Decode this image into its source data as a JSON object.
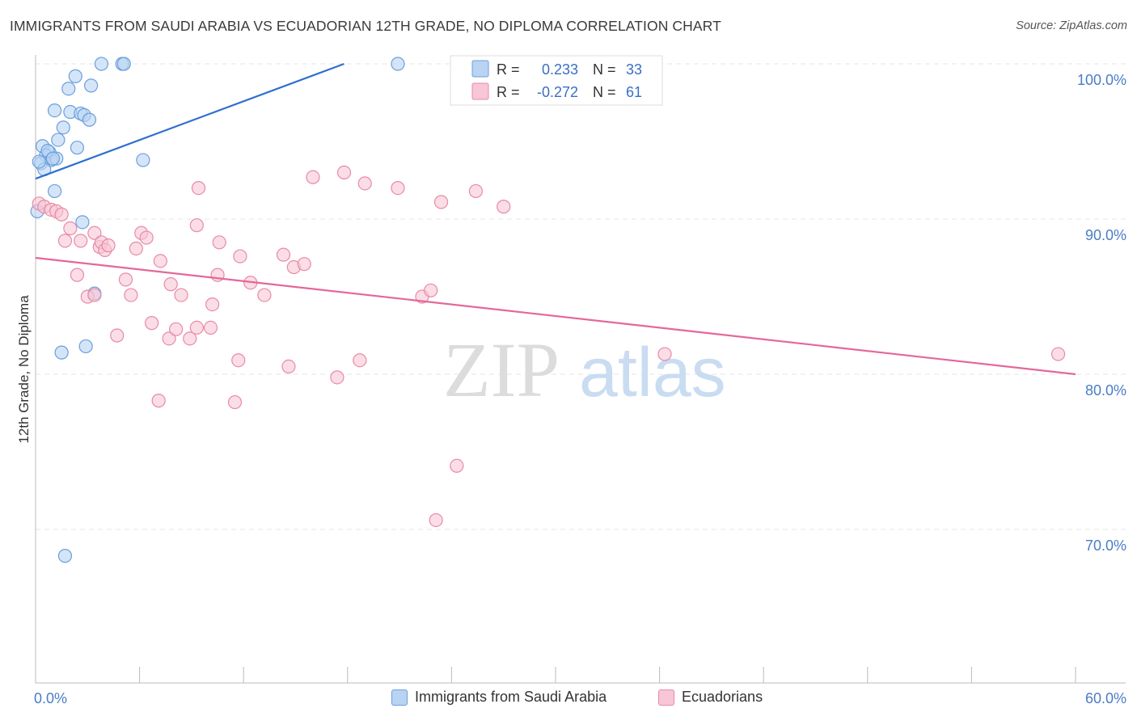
{
  "title": "IMMIGRANTS FROM SAUDI ARABIA VS ECUADORIAN 12TH GRADE, NO DIPLOMA CORRELATION CHART",
  "source": "Source: ZipAtlas.com",
  "watermark": {
    "zip": "ZIP",
    "atlas": "atlas"
  },
  "colors": {
    "blue_fill": "#b9d3f3",
    "blue_stroke": "#6b9fdc",
    "blue_line": "#2f6fce",
    "pink_fill": "#f8c6d6",
    "pink_stroke": "#e88aa8",
    "pink_line": "#e4679a",
    "axis_text": "#4a7cc7",
    "grid": "#e6e6e6"
  },
  "stats_box": {
    "rows": [
      {
        "r_label": "R =",
        "r_value": "0.233",
        "n_label": "N =",
        "n_value": "33"
      },
      {
        "r_label": "R =",
        "r_value": "-0.272",
        "n_label": "N =",
        "n_value": "61"
      }
    ]
  },
  "chart_data": {
    "type": "scatter",
    "ylabel": "12th Grade, No Diploma",
    "xlim": [
      0,
      60
    ],
    "ylim": [
      62,
      100
    ],
    "x_tick_labels": [
      "0.0%",
      "60.0%"
    ],
    "y_ticks": [
      {
        "value": 100,
        "label": "100.0%"
      },
      {
        "value": 90,
        "label": "90.0%"
      },
      {
        "value": 80,
        "label": "80.0%"
      },
      {
        "value": 70,
        "label": "70.0%"
      }
    ],
    "legend_placement": "bottom",
    "grid": true,
    "series": [
      {
        "name": "Immigrants from Saudi Arabia",
        "color": "blue",
        "trend": {
          "x": [
            0,
            17.8
          ],
          "y": [
            92.6,
            100
          ]
        },
        "points": [
          [
            3.8,
            100
          ],
          [
            5.0,
            100
          ],
          [
            5.1,
            100
          ],
          [
            20.9,
            100
          ],
          [
            2.3,
            99.2
          ],
          [
            3.2,
            98.6
          ],
          [
            1.9,
            98.4
          ],
          [
            1.1,
            97.0
          ],
          [
            2.0,
            96.9
          ],
          [
            2.6,
            96.8
          ],
          [
            2.8,
            96.7
          ],
          [
            3.1,
            96.4
          ],
          [
            1.6,
            95.9
          ],
          [
            1.3,
            95.1
          ],
          [
            0.4,
            94.7
          ],
          [
            2.4,
            94.6
          ],
          [
            0.8,
            94.3
          ],
          [
            0.6,
            94.1
          ],
          [
            0.9,
            93.8
          ],
          [
            1.2,
            93.9
          ],
          [
            0.3,
            93.6
          ],
          [
            6.2,
            93.8
          ],
          [
            0.5,
            93.2
          ],
          [
            1.1,
            91.8
          ],
          [
            0.1,
            90.5
          ],
          [
            2.7,
            89.8
          ],
          [
            3.4,
            85.2
          ],
          [
            2.9,
            81.8
          ],
          [
            1.5,
            81.4
          ],
          [
            1.7,
            68.3
          ],
          [
            0.2,
            93.7
          ],
          [
            0.7,
            94.4
          ],
          [
            1.0,
            93.9
          ]
        ]
      },
      {
        "name": "Ecuadorians",
        "color": "pink",
        "trend": {
          "x": [
            0,
            60
          ],
          "y": [
            87.5,
            80.0
          ]
        },
        "points": [
          [
            0.2,
            91.0
          ],
          [
            0.5,
            90.8
          ],
          [
            0.9,
            90.6
          ],
          [
            1.2,
            90.5
          ],
          [
            1.5,
            90.3
          ],
          [
            1.7,
            88.6
          ],
          [
            2.0,
            89.4
          ],
          [
            2.6,
            88.6
          ],
          [
            3.4,
            89.1
          ],
          [
            3.7,
            88.2
          ],
          [
            3.8,
            88.5
          ],
          [
            4.0,
            88.0
          ],
          [
            4.2,
            88.3
          ],
          [
            6.1,
            89.1
          ],
          [
            6.4,
            88.8
          ],
          [
            5.8,
            88.1
          ],
          [
            9.4,
            92.0
          ],
          [
            9.3,
            89.6
          ],
          [
            10.6,
            88.5
          ],
          [
            11.8,
            87.6
          ],
          [
            16.0,
            92.7
          ],
          [
            17.8,
            93.0
          ],
          [
            19.0,
            92.3
          ],
          [
            20.9,
            92.0
          ],
          [
            23.4,
            91.1
          ],
          [
            25.4,
            91.8
          ],
          [
            27.0,
            90.8
          ],
          [
            14.3,
            87.7
          ],
          [
            14.9,
            86.9
          ],
          [
            15.5,
            87.1
          ],
          [
            7.2,
            87.3
          ],
          [
            2.4,
            86.4
          ],
          [
            5.2,
            86.1
          ],
          [
            7.8,
            85.8
          ],
          [
            8.4,
            85.1
          ],
          [
            10.5,
            86.4
          ],
          [
            12.4,
            85.9
          ],
          [
            13.2,
            85.1
          ],
          [
            3.0,
            85.0
          ],
          [
            3.4,
            85.1
          ],
          [
            5.5,
            85.1
          ],
          [
            10.2,
            84.5
          ],
          [
            22.3,
            85.0
          ],
          [
            22.8,
            85.4
          ],
          [
            4.7,
            82.5
          ],
          [
            6.7,
            83.3
          ],
          [
            7.7,
            82.3
          ],
          [
            8.1,
            82.9
          ],
          [
            8.9,
            82.3
          ],
          [
            9.3,
            83.0
          ],
          [
            10.1,
            83.0
          ],
          [
            11.7,
            80.9
          ],
          [
            14.6,
            80.5
          ],
          [
            17.4,
            79.8
          ],
          [
            18.7,
            80.9
          ],
          [
            36.3,
            81.3
          ],
          [
            59.0,
            81.3
          ],
          [
            7.1,
            78.3
          ],
          [
            11.5,
            78.2
          ],
          [
            24.3,
            74.1
          ],
          [
            23.1,
            70.6
          ]
        ]
      }
    ]
  }
}
